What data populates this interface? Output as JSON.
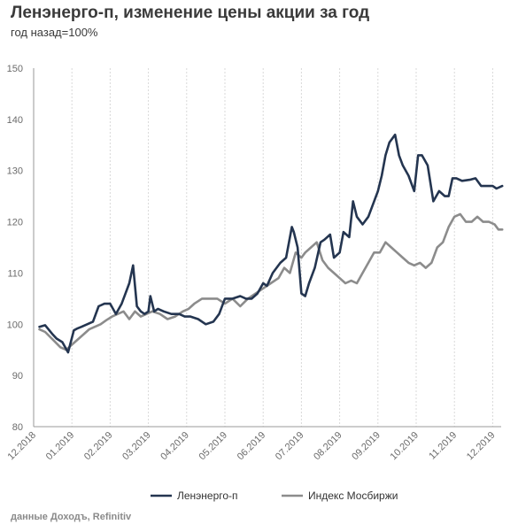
{
  "title": "Ленэнерго-п, изменение цены акции за год",
  "subtitle": "год назад=100%",
  "source": "данные Доходъ, Refinitiv",
  "colors": {
    "series1": "#243550",
    "series2": "#8c8c8c",
    "grid": "#d9d9d9",
    "axis": "#9a9a9a"
  },
  "chart_data": {
    "type": "line",
    "ylim": [
      80,
      150
    ],
    "y_ticks": [
      80,
      90,
      100,
      110,
      120,
      130,
      140,
      150
    ],
    "x_tick_labels": [
      "12.2018",
      "01.2019",
      "02.2019",
      "03.2019",
      "04.2019",
      "05.2019",
      "06.2019",
      "07.2019",
      "08.2019",
      "09.2019",
      "10.2019",
      "11.2019",
      "12.2019"
    ],
    "grid": true,
    "legend_position": "bottom",
    "x_range_months": [
      0,
      12.25
    ],
    "series": [
      {
        "name": "Ленэнерго-п",
        "x": [
          0.15,
          0.3,
          0.5,
          0.6,
          0.75,
          0.9,
          1.05,
          1.15,
          1.25,
          1.4,
          1.55,
          1.7,
          1.85,
          2.0,
          2.15,
          2.3,
          2.4,
          2.5,
          2.6,
          2.7,
          2.8,
          2.9,
          3.0,
          3.05,
          3.15,
          3.25,
          3.4,
          3.6,
          3.8,
          3.95,
          4.1,
          4.3,
          4.5,
          4.7,
          4.85,
          5.0,
          5.2,
          5.4,
          5.55,
          5.7,
          5.85,
          6.0,
          6.1,
          6.25,
          6.45,
          6.6,
          6.75,
          6.8,
          6.9,
          7.0,
          7.1,
          7.2,
          7.35,
          7.5,
          7.6,
          7.75,
          7.85,
          8.0,
          8.1,
          8.25,
          8.35,
          8.45,
          8.6,
          8.75,
          8.9,
          9.0,
          9.1,
          9.2,
          9.3,
          9.45,
          9.55,
          9.65,
          9.8,
          9.95,
          10.05,
          10.15,
          10.3,
          10.45,
          10.6,
          10.75,
          10.85,
          10.95,
          11.05,
          11.2,
          11.4,
          11.55,
          11.7,
          11.85,
          12.0,
          12.1,
          12.25
        ],
        "values": [
          99.5,
          99.8,
          98,
          97.2,
          96.5,
          94.5,
          98.8,
          99.2,
          99.5,
          100,
          100.5,
          103.5,
          104,
          104,
          102,
          104,
          106,
          108,
          111.5,
          103.5,
          102.5,
          102,
          102.5,
          105.5,
          102.5,
          103,
          102.5,
          102,
          102,
          101.5,
          101.5,
          101,
          100,
          100.5,
          102,
          105,
          105,
          105.5,
          105,
          105,
          106,
          108,
          107.5,
          110,
          112,
          113,
          119,
          118,
          115,
          106,
          105.5,
          108,
          111,
          116,
          116.5,
          117.5,
          113,
          114,
          118,
          117,
          124,
          121,
          119.5,
          121,
          124,
          126,
          129,
          133,
          135.5,
          137,
          133,
          131,
          129,
          126,
          133,
          133,
          131,
          124,
          126,
          125,
          125,
          128.5,
          128.5,
          128,
          128.2,
          128.5,
          127,
          127,
          127,
          126.5,
          127
        ]
      },
      {
        "name": "Индекс Мосбиржи",
        "x": [
          0.15,
          0.3,
          0.5,
          0.7,
          0.85,
          1.0,
          1.15,
          1.3,
          1.45,
          1.6,
          1.75,
          1.9,
          2.05,
          2.2,
          2.35,
          2.5,
          2.65,
          2.8,
          2.95,
          3.1,
          3.3,
          3.5,
          3.7,
          3.9,
          4.05,
          4.2,
          4.4,
          4.6,
          4.8,
          5.0,
          5.2,
          5.4,
          5.6,
          5.8,
          6.0,
          6.2,
          6.4,
          6.55,
          6.7,
          6.85,
          7.0,
          7.1,
          7.25,
          7.4,
          7.55,
          7.7,
          7.85,
          8.0,
          8.15,
          8.3,
          8.45,
          8.6,
          8.75,
          8.9,
          9.05,
          9.2,
          9.35,
          9.5,
          9.65,
          9.8,
          9.95,
          10.1,
          10.25,
          10.4,
          10.55,
          10.7,
          10.85,
          11.0,
          11.15,
          11.3,
          11.45,
          11.6,
          11.75,
          11.9,
          12.05,
          12.15,
          12.25
        ],
        "values": [
          99,
          98.5,
          97,
          95.5,
          95,
          96,
          97,
          98,
          99,
          99.5,
          100,
          100.8,
          101.5,
          102,
          102.5,
          101,
          102.5,
          101.5,
          102,
          102.5,
          102,
          101,
          101.5,
          102.5,
          103,
          104,
          105,
          105,
          105,
          104,
          105,
          103.5,
          105,
          106,
          107,
          108,
          109,
          111,
          110,
          114,
          113,
          114,
          115,
          116,
          112.5,
          111,
          110,
          109,
          108,
          108.5,
          108,
          110,
          112,
          114,
          114,
          116,
          115,
          114,
          113,
          112,
          111.5,
          112,
          111,
          112,
          115,
          116,
          119,
          121,
          121.5,
          120,
          120,
          121,
          120,
          120,
          119.5,
          118.5,
          118.5
        ]
      }
    ]
  }
}
